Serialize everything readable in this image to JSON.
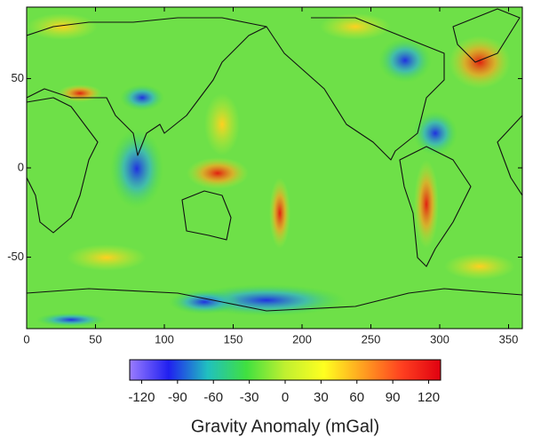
{
  "map": {
    "xlim": [
      0,
      360
    ],
    "ylim": [
      -90,
      90
    ],
    "xticks": [
      0,
      50,
      100,
      150,
      200,
      250,
      300,
      350
    ],
    "yticks": [
      -50,
      0,
      50
    ]
  },
  "colorbar": {
    "label": "Gravity Anomaly (mGal)",
    "clim": [
      -130,
      130
    ],
    "ticks": [
      -120,
      -90,
      -60,
      -30,
      0,
      30,
      60,
      90,
      120
    ],
    "colormap": [
      "#9a7cff",
      "#2020f0",
      "#20c0c0",
      "#40e040",
      "#c0f030",
      "#ffff20",
      "#ffa020",
      "#ff4020",
      "#e00010"
    ]
  }
}
